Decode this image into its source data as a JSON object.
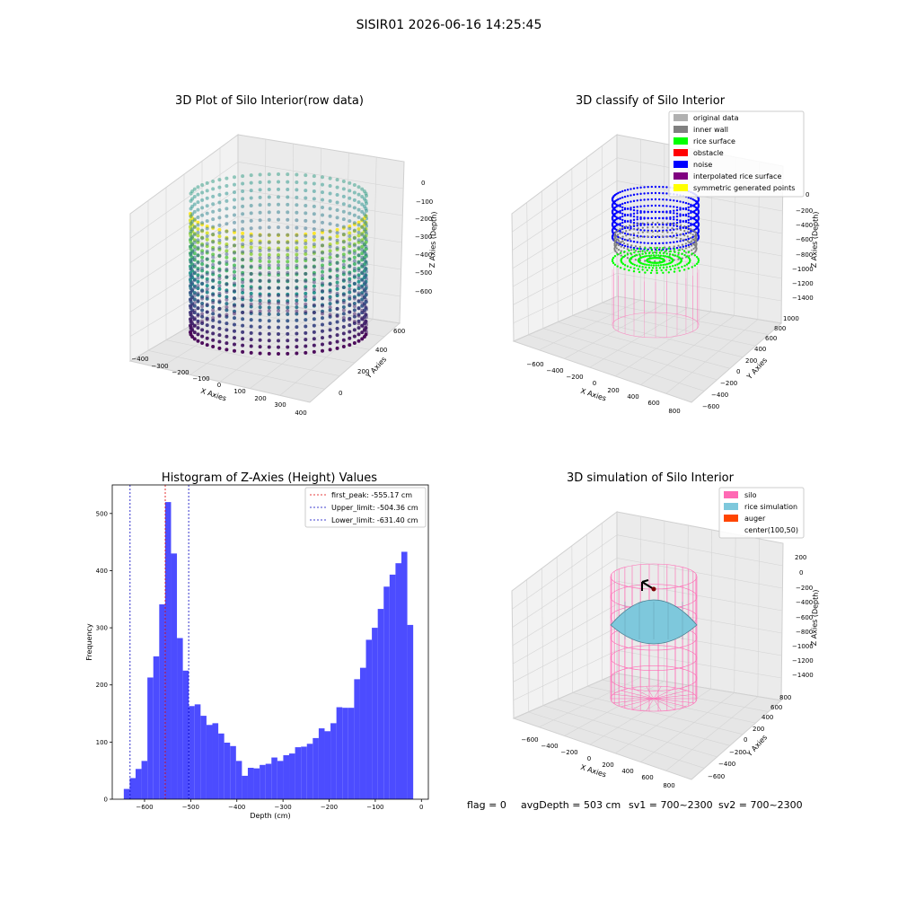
{
  "suptitle": "SISIR01 2026-06-16 14:25:45",
  "colors": {
    "hist_bar": "#4c4cff",
    "first_peak_line": "#e00000",
    "limit_line": "#0000c0",
    "silo": "#ff69b4",
    "rice_simulation": "#7ec8dc",
    "auger": "#ff4500",
    "rice_surface": "#00ff00",
    "noise": "#0000ff",
    "inner_wall": "#808080",
    "obstacle": "#ff0000",
    "interpolated": "#800080",
    "symmetric": "#ffff00",
    "original": "#b0b0b0"
  },
  "panels": {
    "raw": {
      "title": "3D Plot of Silo Interior(row data)",
      "xlabel": "X Axies",
      "ylabel": "Y Axies",
      "zlabel": "Z Axies (Depth)",
      "xticks": [
        "−400",
        "−300",
        "−200",
        "−100",
        "0",
        "100",
        "200",
        "300",
        "400"
      ],
      "yticks": [
        "0",
        "200",
        "400",
        "600"
      ],
      "zticks": [
        "0",
        "−100",
        "−200",
        "−300",
        "−400",
        "−500",
        "−600"
      ]
    },
    "classify": {
      "title": "3D classify of Silo Interior",
      "xlabel": "X Axies",
      "ylabel": "Y Axies",
      "zlabel": "Z Axies (Depth)",
      "xticks": [
        "−600",
        "−400",
        "−200",
        "0",
        "200",
        "400",
        "600",
        "800"
      ],
      "yticks": [
        "−600",
        "−400",
        "−200",
        "0",
        "200",
        "400",
        "600",
        "800",
        "1000"
      ],
      "zticks": [
        "0",
        "−200",
        "−400",
        "−600",
        "−800",
        "−1000",
        "−1200",
        "−1400"
      ],
      "legend": [
        {
          "label": "original data",
          "color": "#b0b0b0"
        },
        {
          "label": "inner wall",
          "color": "#808080"
        },
        {
          "label": "rice surface",
          "color": "#00ff00"
        },
        {
          "label": "obstacle",
          "color": "#ff0000"
        },
        {
          "label": "noise",
          "color": "#0000ff"
        },
        {
          "label": "interpolated rice surface",
          "color": "#800080"
        },
        {
          "label": "symmetric generated points",
          "color": "#ffff00"
        }
      ]
    },
    "sim": {
      "title": "3D simulation of Silo Interior",
      "xlabel": "X Axies",
      "ylabel": "Y Axies",
      "zlabel": "Z Axies (Depth)",
      "xticks": [
        "−600",
        "−400",
        "−200",
        "0",
        "200",
        "400",
        "600",
        "800"
      ],
      "yticks": [
        "−600",
        "−400",
        "−200",
        "0",
        "200",
        "400",
        "600",
        "800"
      ],
      "zticks": [
        "200",
        "0",
        "−200",
        "−400",
        "−600",
        "−800",
        "−1000",
        "−1200",
        "−1400"
      ],
      "legend": [
        {
          "label": "silo",
          "color": "#ff69b4"
        },
        {
          "label": "rice simulation",
          "color": "#7ec8dc"
        },
        {
          "label": "auger",
          "color": "#ff4500"
        },
        {
          "label": "center(100,50)",
          "color": ""
        }
      ]
    },
    "status": {
      "flag": "flag = 0",
      "avg_depth": "avgDepth = 503 cm",
      "sv1": "sv1 = 700~2300",
      "sv2": "sv2 = 700~2300"
    }
  },
  "chart_data": [
    {
      "type": "bar",
      "title": "Histogram of Z-Axies (Height) Values",
      "xlabel": "Depth (cm)",
      "ylabel": "Frequency",
      "xlim": [
        -670,
        15
      ],
      "ylim": [
        0,
        550
      ],
      "xticks": [
        -600,
        -500,
        -400,
        -300,
        -200,
        -100,
        0
      ],
      "xtick_labels": [
        "−600",
        "−500",
        "−400",
        "−300",
        "−200",
        "−100",
        "0"
      ],
      "yticks": [
        0,
        100,
        200,
        300,
        400,
        500
      ],
      "bin_start": -645,
      "bin_width": 12.8,
      "values": [
        18,
        37,
        53,
        67,
        213,
        250,
        341,
        520,
        430,
        282,
        225,
        163,
        166,
        146,
        130,
        133,
        115,
        99,
        93,
        67,
        41,
        55,
        54,
        60,
        62,
        73,
        67,
        77,
        80,
        91,
        92,
        97,
        107,
        124,
        119,
        133,
        161,
        160,
        160,
        210,
        230,
        279,
        300,
        333,
        372,
        393,
        413,
        433,
        305
      ],
      "vlines": [
        {
          "x": -555.17,
          "label": "first_peak: -555.17 cm",
          "color": "#e00000"
        },
        {
          "x": -504.36,
          "label": "Upper_limit: -504.36 cm",
          "color": "#0000c0"
        },
        {
          "x": -631.4,
          "label": "Lower_limit: -631.40 cm",
          "color": "#0000c0"
        }
      ],
      "legend_position": "top-right"
    }
  ]
}
